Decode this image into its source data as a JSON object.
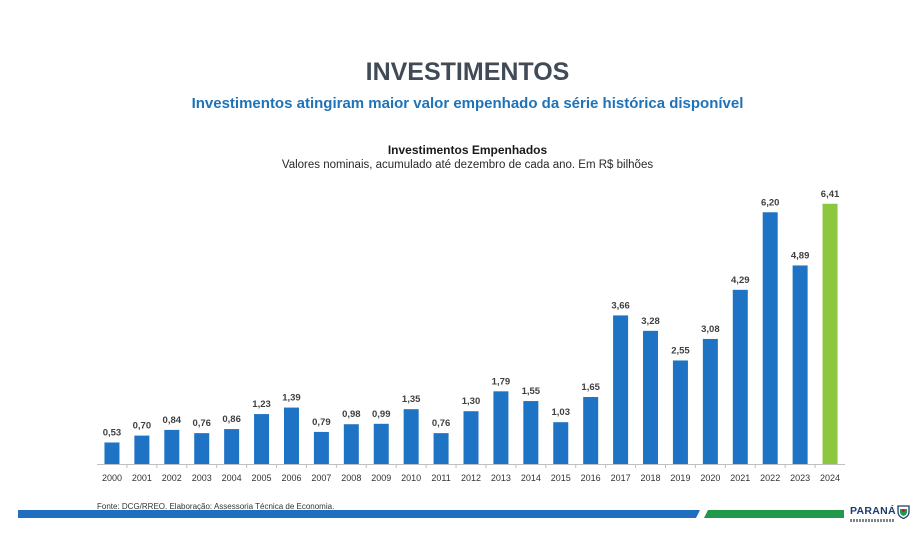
{
  "header": {
    "title": "INVESTIMENTOS",
    "subtitle": "Investimentos atingiram maior valor empenhado da série histórica disponível"
  },
  "footer": {
    "source": "Fonte: DCG/RREO. Elaboração: Assessoria Técnica de Economia.",
    "logo_text": "PARANÁ"
  },
  "colors": {
    "bar": "#1e73c4",
    "highlight_bar": "#8dc63f",
    "title": "#404b57",
    "subtitle": "#1e73b8"
  },
  "chart_data": {
    "type": "bar",
    "title": "Investimentos Empenhados",
    "subtitle": "Valores nominais, acumulado até dezembro de cada ano. Em R$ bilhões",
    "xlabel": "",
    "ylabel": "",
    "grid": false,
    "ylim": [
      0,
      6.8
    ],
    "categories": [
      "2000",
      "2001",
      "2002",
      "2003",
      "2004",
      "2005",
      "2006",
      "2007",
      "2008",
      "2009",
      "2010",
      "2011",
      "2012",
      "2013",
      "2014",
      "2015",
      "2016",
      "2017",
      "2018",
      "2019",
      "2020",
      "2021",
      "2022",
      "2023",
      "2024"
    ],
    "values": [
      0.53,
      0.7,
      0.84,
      0.76,
      0.86,
      1.23,
      1.39,
      0.79,
      0.98,
      0.99,
      1.35,
      0.76,
      1.3,
      1.79,
      1.55,
      1.03,
      1.65,
      3.66,
      3.28,
      2.55,
      3.08,
      4.29,
      6.2,
      4.89,
      6.41
    ],
    "value_labels": [
      "0,53",
      "0,70",
      "0,84",
      "0,76",
      "0,86",
      "1,23",
      "1,39",
      "0,79",
      "0,98",
      "0,99",
      "1,35",
      "0,76",
      "1,30",
      "1,79",
      "1,55",
      "1,03",
      "1,65",
      "3,66",
      "3,28",
      "2,55",
      "3,08",
      "4,29",
      "6,20",
      "4,89",
      "6,41"
    ],
    "highlight": [
      "2024"
    ]
  }
}
